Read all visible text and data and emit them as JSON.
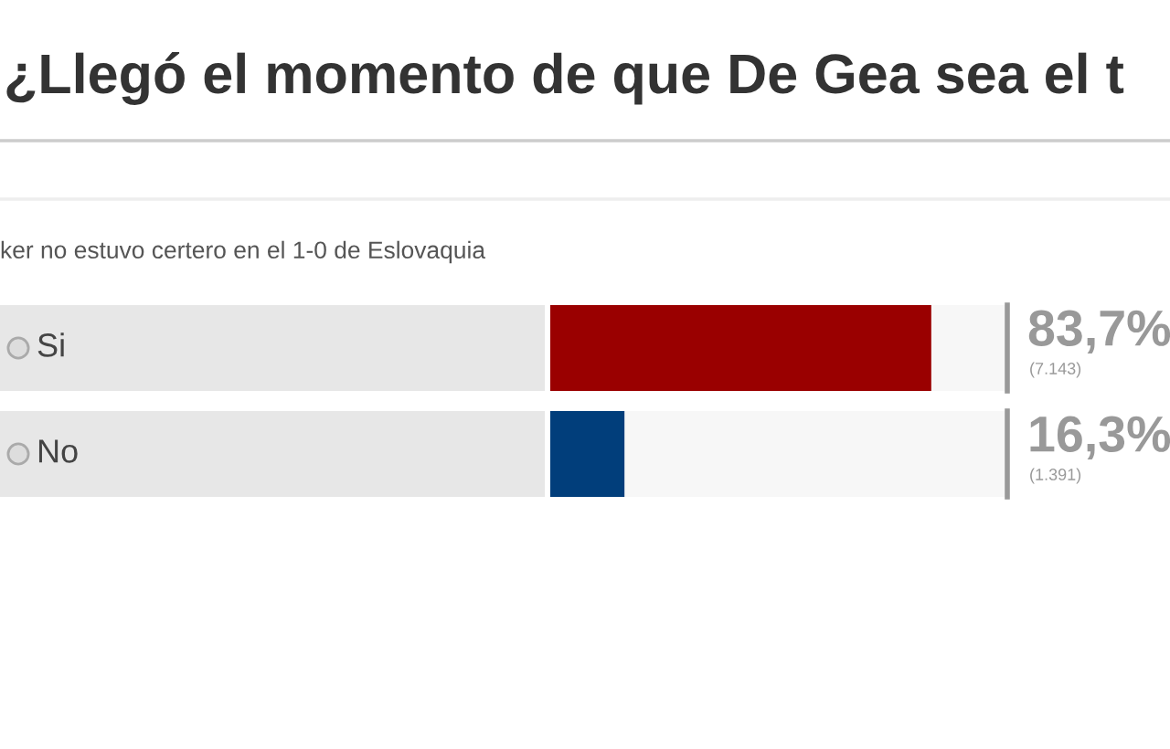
{
  "chart_data": {
    "type": "bar",
    "orientation": "horizontal",
    "title": "¿Llegó el momento de que De Gea sea el t",
    "subtitle": "ker no estuvo certero en el 1-0 de Eslovaquia",
    "categories": [
      "Si",
      "No"
    ],
    "values": [
      83.7,
      16.3
    ],
    "colors": [
      "#9a0000",
      "#013e7b"
    ],
    "xlim": [
      0,
      100
    ],
    "value_labels": [
      "83,7%\n(7.143)",
      "16,3%\n(1.391)"
    ],
    "tick_labels": false,
    "legend": false
  }
}
